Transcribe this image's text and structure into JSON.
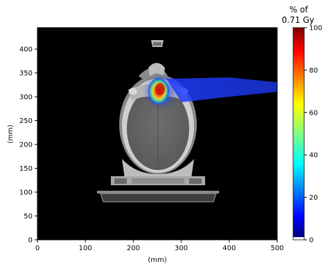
{
  "plot": {
    "xlabel": "(mm)",
    "ylabel": "(mm)",
    "x_ticks": [
      "0",
      "100",
      "200",
      "300",
      "400",
      "500"
    ],
    "y_ticks": [
      "0",
      "50",
      "100",
      "150",
      "200",
      "250",
      "300",
      "350",
      "400"
    ],
    "xlim": [
      0,
      500
    ],
    "ylim": [
      0,
      445
    ],
    "background_color": "#000000"
  },
  "colorbar": {
    "title_line1": "% of",
    "title_line2": "0.71 Gy",
    "ticks": [
      "0",
      "20",
      "40",
      "60",
      "80",
      "100"
    ],
    "range": [
      0,
      100
    ],
    "colormap": "jet"
  }
}
